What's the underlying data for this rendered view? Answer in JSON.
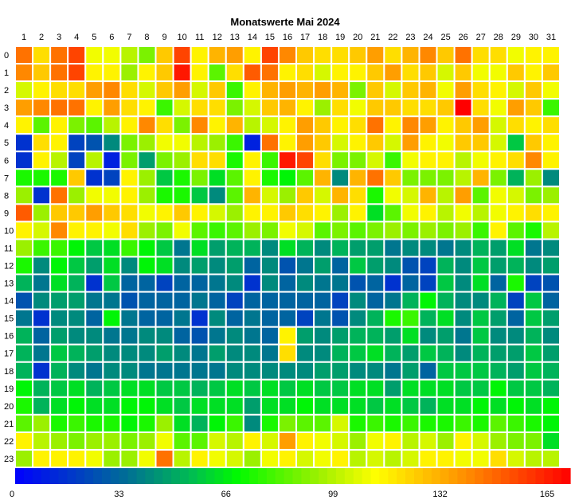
{
  "chart_data": {
    "type": "heatmap",
    "title": "Monatswerte Mai 2024",
    "x": [
      "1",
      "2",
      "3",
      "4",
      "5",
      "6",
      "7",
      "8",
      "9",
      "10",
      "11",
      "12",
      "13",
      "14",
      "15",
      "16",
      "17",
      "18",
      "19",
      "20",
      "21",
      "22",
      "23",
      "24",
      "25",
      "26",
      "27",
      "28",
      "29",
      "30",
      "31"
    ],
    "y": [
      "0",
      "1",
      "2",
      "3",
      "4",
      "5",
      "6",
      "7",
      "8",
      "9",
      "10",
      "11",
      "12",
      "13",
      "14",
      "15",
      "16",
      "17",
      "18",
      "19",
      "20",
      "21",
      "22",
      "23"
    ],
    "colorbar": {
      "min": 0,
      "max": 165,
      "ticks": [
        0,
        33,
        66,
        99,
        132,
        165
      ]
    },
    "values": [
      [
        140,
        115,
        140,
        150,
        105,
        105,
        95,
        85,
        120,
        150,
        110,
        125,
        130,
        110,
        150,
        135,
        120,
        115,
        115,
        120,
        130,
        115,
        125,
        135,
        120,
        140,
        115,
        115,
        105,
        110,
        110
      ],
      [
        135,
        120,
        140,
        150,
        110,
        110,
        90,
        110,
        120,
        160,
        110,
        80,
        115,
        145,
        140,
        110,
        115,
        100,
        110,
        110,
        120,
        130,
        115,
        120,
        100,
        120,
        105,
        105,
        120,
        110,
        120
      ],
      [
        100,
        110,
        115,
        115,
        130,
        135,
        115,
        100,
        120,
        130,
        100,
        120,
        75,
        110,
        125,
        130,
        125,
        130,
        125,
        85,
        120,
        100,
        120,
        125,
        105,
        130,
        115,
        110,
        100,
        120,
        105
      ],
      [
        130,
        135,
        140,
        140,
        110,
        130,
        115,
        110,
        75,
        100,
        115,
        115,
        85,
        100,
        120,
        125,
        110,
        90,
        115,
        105,
        120,
        120,
        115,
        115,
        120,
        165,
        115,
        105,
        130,
        120,
        75
      ],
      [
        110,
        80,
        110,
        85,
        80,
        95,
        110,
        135,
        115,
        85,
        135,
        110,
        125,
        95,
        100,
        110,
        130,
        120,
        110,
        115,
        140,
        110,
        135,
        130,
        110,
        120,
        130,
        100,
        115,
        110,
        115
      ],
      [
        15,
        115,
        110,
        20,
        25,
        40,
        85,
        90,
        105,
        105,
        95,
        90,
        75,
        10,
        140,
        110,
        130,
        120,
        100,
        110,
        120,
        100,
        130,
        110,
        105,
        120,
        120,
        100,
        55,
        120,
        110
      ],
      [
        15,
        110,
        95,
        20,
        95,
        10,
        85,
        45,
        85,
        90,
        115,
        115,
        70,
        110,
        75,
        160,
        150,
        115,
        85,
        85,
        100,
        75,
        105,
        110,
        110,
        95,
        105,
        110,
        115,
        135,
        110
      ],
      [
        70,
        70,
        70,
        120,
        15,
        20,
        110,
        90,
        55,
        70,
        85,
        60,
        80,
        110,
        70,
        65,
        80,
        125,
        40,
        125,
        140,
        120,
        85,
        85,
        85,
        95,
        125,
        85,
        50,
        90,
        40
      ],
      [
        90,
        15,
        140,
        90,
        105,
        105,
        110,
        90,
        70,
        70,
        55,
        40,
        80,
        125,
        100,
        90,
        120,
        100,
        125,
        115,
        70,
        105,
        100,
        125,
        95,
        130,
        80,
        105,
        100,
        85,
        90
      ],
      [
        145,
        90,
        120,
        120,
        130,
        120,
        115,
        105,
        110,
        120,
        110,
        100,
        90,
        110,
        110,
        120,
        115,
        110,
        90,
        110,
        60,
        80,
        105,
        110,
        95,
        105,
        95,
        105,
        110,
        115,
        110
      ],
      [
        110,
        100,
        135,
        110,
        110,
        105,
        115,
        90,
        85,
        105,
        80,
        75,
        80,
        90,
        85,
        105,
        100,
        80,
        85,
        80,
        85,
        90,
        85,
        90,
        85,
        90,
        75,
        110,
        80,
        70,
        95
      ],
      [
        90,
        75,
        75,
        65,
        55,
        60,
        75,
        65,
        55,
        35,
        60,
        45,
        50,
        50,
        40,
        60,
        50,
        40,
        50,
        45,
        45,
        35,
        40,
        40,
        35,
        40,
        50,
        45,
        60,
        35,
        40
      ],
      [
        70,
        40,
        65,
        55,
        45,
        60,
        40,
        65,
        60,
        40,
        45,
        40,
        45,
        30,
        40,
        25,
        35,
        45,
        30,
        55,
        45,
        40,
        25,
        20,
        50,
        40,
        55,
        45,
        50,
        40,
        45
      ],
      [
        50,
        35,
        60,
        50,
        15,
        55,
        30,
        30,
        20,
        30,
        30,
        35,
        40,
        15,
        40,
        30,
        40,
        35,
        35,
        25,
        30,
        15,
        30,
        20,
        55,
        40,
        60,
        30,
        70,
        20,
        25
      ],
      [
        25,
        40,
        45,
        45,
        35,
        35,
        25,
        30,
        30,
        30,
        35,
        30,
        20,
        30,
        30,
        30,
        30,
        30,
        20,
        40,
        30,
        35,
        50,
        65,
        50,
        40,
        40,
        50,
        20,
        55,
        30
      ],
      [
        35,
        15,
        40,
        40,
        30,
        65,
        35,
        30,
        30,
        35,
        15,
        40,
        30,
        35,
        30,
        30,
        20,
        35,
        25,
        40,
        50,
        70,
        75,
        50,
        60,
        40,
        55,
        45,
        30,
        55,
        45
      ],
      [
        50,
        30,
        45,
        40,
        40,
        35,
        35,
        40,
        40,
        30,
        25,
        35,
        40,
        35,
        30,
        110,
        45,
        40,
        45,
        50,
        50,
        45,
        60,
        40,
        45,
        35,
        55,
        40,
        40,
        50,
        40
      ],
      [
        50,
        35,
        55,
        50,
        45,
        40,
        40,
        40,
        45,
        40,
        35,
        45,
        40,
        40,
        35,
        115,
        40,
        40,
        50,
        55,
        60,
        50,
        45,
        55,
        50,
        40,
        50,
        45,
        45,
        55,
        45
      ],
      [
        50,
        15,
        50,
        40,
        35,
        40,
        40,
        35,
        35,
        35,
        35,
        35,
        40,
        40,
        40,
        40,
        40,
        45,
        45,
        40,
        40,
        35,
        45,
        30,
        55,
        55,
        55,
        50,
        45,
        55,
        50
      ],
      [
        65,
        50,
        55,
        60,
        50,
        55,
        60,
        60,
        55,
        55,
        50,
        55,
        60,
        55,
        60,
        55,
        60,
        55,
        55,
        60,
        60,
        45,
        60,
        60,
        60,
        55,
        55,
        65,
        55,
        55,
        50
      ],
      [
        70,
        50,
        60,
        65,
        60,
        60,
        65,
        65,
        60,
        55,
        60,
        60,
        60,
        45,
        60,
        60,
        65,
        60,
        60,
        60,
        55,
        60,
        55,
        50,
        60,
        60,
        65,
        60,
        65,
        60,
        65
      ],
      [
        80,
        90,
        70,
        75,
        70,
        70,
        65,
        70,
        90,
        60,
        50,
        65,
        75,
        40,
        70,
        85,
        80,
        80,
        100,
        70,
        75,
        70,
        75,
        70,
        70,
        75,
        70,
        80,
        75,
        70,
        65
      ],
      [
        110,
        95,
        90,
        85,
        90,
        90,
        85,
        90,
        105,
        80,
        80,
        100,
        95,
        110,
        100,
        130,
        110,
        105,
        100,
        90,
        105,
        110,
        95,
        100,
        90,
        110,
        100,
        90,
        85,
        85,
        60
      ],
      [
        90,
        110,
        110,
        110,
        105,
        90,
        90,
        105,
        140,
        95,
        110,
        105,
        100,
        90,
        105,
        110,
        100,
        105,
        110,
        95,
        100,
        95,
        100,
        110,
        110,
        105,
        105,
        115,
        100,
        95,
        95
      ]
    ]
  }
}
